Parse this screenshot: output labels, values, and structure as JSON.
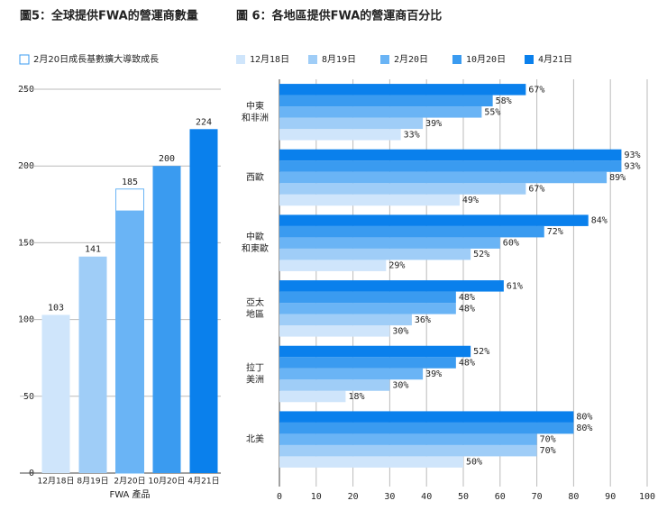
{
  "chart_data": [
    {
      "type": "bar",
      "title": "圖5：全球提供FWA的營運商數量",
      "xlabel": "FWA 產品",
      "categories": [
        "12月18日",
        "8月19日",
        "2月20日",
        "10月20日",
        "4月21日"
      ],
      "values": [
        103,
        141,
        185,
        200,
        224
      ],
      "colors": [
        "#cfe5fb",
        "#9fcdf7",
        "#6ab4f5",
        "#3a9bf0",
        "#0a80ec"
      ],
      "base_values": [
        null,
        null,
        171,
        null,
        null
      ],
      "outline_legend": "2月20日成長基數擴大導致成長",
      "ylim": [
        0,
        250
      ],
      "yticks": [
        0,
        50,
        100,
        150,
        200,
        250
      ],
      "grid": true
    },
    {
      "type": "hbar",
      "title": "圖 6：各地區提供FWA的營運商百分比",
      "categories": [
        [
          "中東",
          "和非洲"
        ],
        [
          "西歐"
        ],
        [
          "中歐",
          "和東歐"
        ],
        [
          "亞太",
          "地區"
        ],
        [
          "拉丁",
          "美洲"
        ],
        [
          "北美"
        ]
      ],
      "series": [
        {
          "name": "12月18日",
          "color": "#cfe5fb",
          "values": [
            33,
            49,
            29,
            30,
            18,
            50
          ],
          "value_labels": [
            "33%",
            "49%",
            "29%",
            "30%",
            "18%",
            "50%"
          ]
        },
        {
          "name": "8月19日",
          "color": "#9fcdf7",
          "values": [
            39,
            67,
            52,
            36,
            30,
            70
          ],
          "value_labels": [
            "39%",
            "67%",
            "52%",
            "36%",
            "30%",
            "70%"
          ]
        },
        {
          "name": "2月20日",
          "color": "#6ab4f5",
          "values": [
            55,
            89,
            60,
            48,
            39,
            70
          ],
          "value_labels": [
            "55%",
            "89%",
            "60%",
            "48%",
            "39%",
            "70%"
          ]
        },
        {
          "name": "10月20日",
          "color": "#3a9bf0",
          "values": [
            58,
            93,
            72,
            48,
            48,
            80
          ],
          "value_labels": [
            "58%",
            "93%",
            "72%",
            "48%",
            "48%",
            "80%"
          ]
        },
        {
          "name": "4月21日",
          "color": "#0a80ec",
          "values": [
            67,
            93,
            84,
            61,
            52,
            80
          ],
          "value_labels": [
            "67%",
            "93%",
            "84%",
            "61%",
            "52%",
            "80%"
          ]
        }
      ],
      "xlim": [
        0,
        100
      ],
      "xticks": [
        0,
        10,
        20,
        30,
        40,
        50,
        60,
        70,
        80,
        90,
        100
      ],
      "grid": true
    }
  ]
}
